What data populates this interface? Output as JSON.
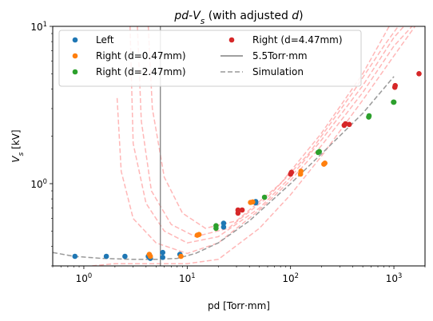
{
  "chart_data": {
    "type": "scatter",
    "title": "pd-V_s (with adjusted d)",
    "xlabel": "pd [Torr·mm]",
    "ylabel": "V_s [kV]",
    "xscale": "log",
    "yscale": "log",
    "xlim": [
      0.5,
      2000
    ],
    "ylim": [
      0.3,
      10
    ],
    "x_ticks": [
      {
        "value": 1,
        "label_base": "10",
        "label_exp": "0"
      },
      {
        "value": 10,
        "label_base": "10",
        "label_exp": "1"
      },
      {
        "value": 100,
        "label_base": "10",
        "label_exp": "2"
      },
      {
        "value": 1000,
        "label_base": "10",
        "label_exp": "3"
      }
    ],
    "y_ticks": [
      {
        "value": 1,
        "label_base": "10",
        "label_exp": "0"
      },
      {
        "value": 10,
        "label_base": "10",
        "label_exp": "1"
      }
    ],
    "grid": false,
    "legend_position": "top",
    "series": [
      {
        "name": "Left",
        "kind": "scatter",
        "color": "#1f77b4",
        "points": [
          [
            0.82,
            0.345
          ],
          [
            1.65,
            0.345
          ],
          [
            2.5,
            0.345
          ],
          [
            4.2,
            0.345
          ],
          [
            4.4,
            0.335
          ],
          [
            5.8,
            0.34
          ],
          [
            5.8,
            0.365
          ],
          [
            8.5,
            0.355
          ],
          [
            22.5,
            0.53
          ],
          [
            22.5,
            0.56
          ],
          [
            46,
            0.755
          ],
          [
            46,
            0.77
          ]
        ]
      },
      {
        "name": "Right (d=0.47mm)",
        "kind": "scatter",
        "color": "#ff7f0e",
        "points": [
          [
            4.3,
            0.355
          ],
          [
            4.4,
            0.345
          ],
          [
            8.7,
            0.345
          ],
          [
            12.5,
            0.47
          ],
          [
            13,
            0.475
          ],
          [
            41,
            0.76
          ],
          [
            43,
            0.765
          ],
          [
            125,
            1.15
          ],
          [
            126,
            1.2
          ],
          [
            210,
            1.33
          ],
          [
            215,
            1.35
          ]
        ]
      },
      {
        "name": "Right (d=2.47mm)",
        "kind": "scatter",
        "color": "#2ca02c",
        "points": [
          [
            19,
            0.52
          ],
          [
            19,
            0.54
          ],
          [
            56,
            0.82
          ],
          [
            185,
            1.58
          ],
          [
            190,
            1.6
          ],
          [
            570,
            2.65
          ],
          [
            575,
            2.7
          ],
          [
            990,
            3.3
          ],
          [
            1000,
            3.3
          ]
        ]
      },
      {
        "name": "Right (d=4.47mm)",
        "kind": "scatter",
        "color": "#d62728",
        "points": [
          [
            31,
            0.65
          ],
          [
            31,
            0.68
          ],
          [
            34,
            0.68
          ],
          [
            100,
            1.15
          ],
          [
            102,
            1.18
          ],
          [
            330,
            2.35
          ],
          [
            340,
            2.4
          ],
          [
            370,
            2.38
          ],
          [
            1020,
            4.1
          ],
          [
            1030,
            4.2
          ],
          [
            1750,
            5.0
          ]
        ]
      },
      {
        "name": "5.5Torr·mm",
        "kind": "vline",
        "color": "#808080",
        "x": 5.5
      },
      {
        "name": "Simulation",
        "kind": "dashed-line",
        "color": "#999999",
        "points": [
          [
            0.5,
            0.365
          ],
          [
            0.8,
            0.345
          ],
          [
            1.5,
            0.335
          ],
          [
            3,
            0.33
          ],
          [
            5,
            0.33
          ],
          [
            8,
            0.335
          ],
          [
            12,
            0.36
          ],
          [
            20,
            0.42
          ],
          [
            40,
            0.58
          ],
          [
            100,
            1.0
          ],
          [
            200,
            1.55
          ],
          [
            500,
            2.8
          ],
          [
            1000,
            4.8
          ]
        ]
      },
      {
        "kind": "paschen-curves",
        "color": "#ff9999",
        "curves": [
          [
            [
              2.1,
              3.5
            ],
            [
              2.3,
              1.2
            ],
            [
              3,
              0.6
            ],
            [
              5,
              0.42
            ],
            [
              10,
              0.36
            ],
            [
              20,
              0.42
            ],
            [
              50,
              0.68
            ],
            [
              100,
              1.05
            ],
            [
              200,
              1.75
            ],
            [
              500,
              3.8
            ],
            [
              1000,
              7.5
            ],
            [
              1500,
              10
            ]
          ],
          [
            [
              2.8,
              10
            ],
            [
              3,
              1.8
            ],
            [
              4,
              0.75
            ],
            [
              6,
              0.5
            ],
            [
              10,
              0.42
            ],
            [
              20,
              0.46
            ],
            [
              50,
              0.7
            ],
            [
              100,
              1.1
            ],
            [
              200,
              1.9
            ],
            [
              500,
              4.2
            ],
            [
              1000,
              8.5
            ],
            [
              1250,
              10
            ]
          ],
          [
            [
              3.3,
              10
            ],
            [
              3.6,
              2.5
            ],
            [
              4.5,
              0.9
            ],
            [
              7,
              0.55
            ],
            [
              12,
              0.46
            ],
            [
              25,
              0.52
            ],
            [
              60,
              0.82
            ],
            [
              150,
              1.55
            ],
            [
              400,
              3.8
            ],
            [
              800,
              7.5
            ],
            [
              1100,
              10
            ]
          ],
          [
            [
              4.2,
              10
            ],
            [
              4.6,
              3.0
            ],
            [
              6,
              1.1
            ],
            [
              9,
              0.65
            ],
            [
              15,
              0.52
            ],
            [
              30,
              0.58
            ],
            [
              80,
              1.0
            ],
            [
              200,
              2.1
            ],
            [
              500,
              5.0
            ],
            [
              900,
              10
            ]
          ],
          [
            [
              1.2,
              0.3
            ],
            [
              2,
              0.31
            ],
            [
              5,
              0.31
            ],
            [
              10,
              0.31
            ],
            [
              20,
              0.33
            ],
            [
              50,
              0.52
            ],
            [
              100,
              0.85
            ],
            [
              200,
              1.5
            ],
            [
              500,
              3.4
            ],
            [
              1000,
              6.5
            ],
            [
              1600,
              10
            ]
          ]
        ]
      }
    ]
  }
}
